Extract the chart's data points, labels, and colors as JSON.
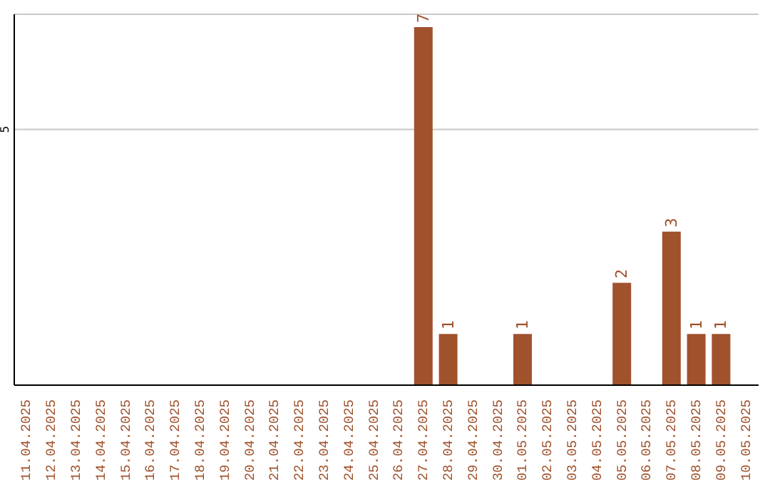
{
  "chart_data": {
    "type": "bar",
    "categories": [
      "11.04.2025",
      "12.04.2025",
      "13.04.2025",
      "14.04.2025",
      "15.04.2025",
      "16.04.2025",
      "17.04.2025",
      "18.04.2025",
      "19.04.2025",
      "20.04.2025",
      "21.04.2025",
      "22.04.2025",
      "23.04.2025",
      "24.04.2025",
      "25.04.2025",
      "26.04.2025",
      "27.04.2025",
      "28.04.2025",
      "29.04.2025",
      "30.04.2025",
      "01.05.2025",
      "02.05.2025",
      "03.05.2025",
      "04.05.2025",
      "05.05.2025",
      "06.05.2025",
      "07.05.2025",
      "08.05.2025",
      "09.05.2025",
      "10.05.2025"
    ],
    "values": [
      null,
      null,
      null,
      null,
      null,
      null,
      null,
      null,
      null,
      null,
      null,
      null,
      null,
      null,
      null,
      null,
      7,
      1,
      null,
      null,
      1,
      null,
      null,
      null,
      2,
      null,
      3,
      1,
      1,
      null
    ],
    "color": "#a0522d",
    "ylim": [
      0,
      7.25
    ],
    "yticks": [
      5
    ],
    "grid": "y",
    "data_labels": true
  }
}
